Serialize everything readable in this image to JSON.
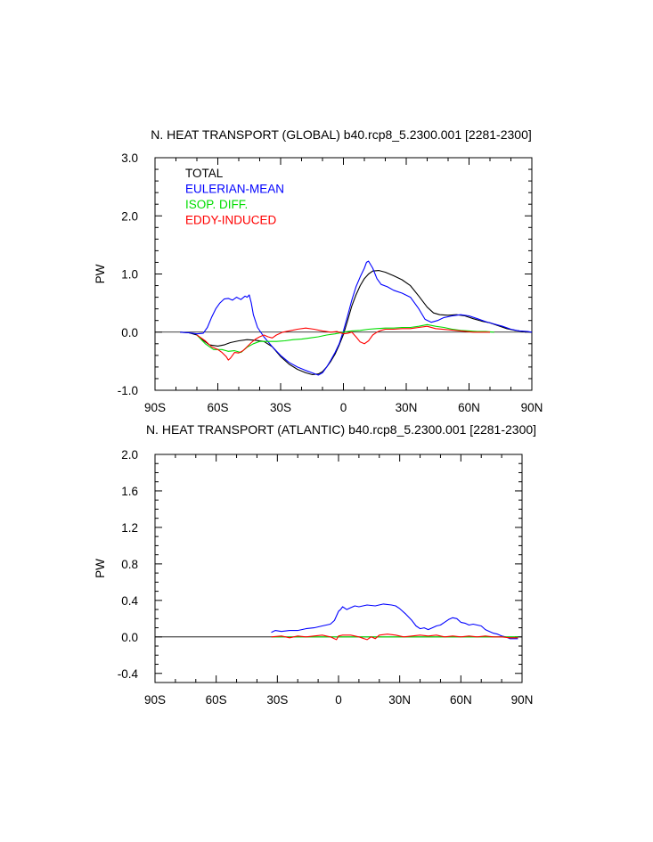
{
  "chart_data": [
    {
      "type": "line",
      "title": "N. HEAT TRANSPORT (GLOBAL) b40.rcp8_5.2300.001 [2281-2300]",
      "xlabel": "",
      "ylabel": "PW",
      "xlim": [
        -90,
        90
      ],
      "ylim": [
        -1.0,
        3.0
      ],
      "xticks": [
        -90,
        -60,
        -30,
        0,
        30,
        60,
        90
      ],
      "xtick_labels": [
        "90S",
        "60S",
        "30S",
        "0",
        "30N",
        "60N",
        "90N"
      ],
      "yticks": [
        -1.0,
        0.0,
        1.0,
        2.0,
        3.0
      ],
      "ytick_labels": [
        "-1.0",
        "0.0",
        "1.0",
        "2.0",
        "3.0"
      ],
      "zero_line": true,
      "legend": "top-left",
      "series": [
        {
          "name": "TOTAL",
          "color": "#000000",
          "x": [
            -78,
            -74,
            -70,
            -67,
            -64,
            -60,
            -57,
            -54,
            -50,
            -46,
            -42,
            -38,
            -34,
            -30,
            -26,
            -22,
            -18,
            -15,
            -12,
            -10,
            -8,
            -6,
            -4,
            -2,
            0,
            2,
            4,
            6,
            8,
            10,
            12,
            14,
            17,
            20,
            24,
            28,
            32,
            36,
            40,
            43,
            46,
            50,
            54,
            58,
            62,
            66,
            70,
            74,
            78,
            82,
            86,
            90
          ],
          "y": [
            0.0,
            -0.01,
            -0.05,
            -0.14,
            -0.22,
            -0.24,
            -0.22,
            -0.18,
            -0.15,
            -0.13,
            -0.14,
            -0.16,
            -0.25,
            -0.42,
            -0.55,
            -0.64,
            -0.7,
            -0.73,
            -0.72,
            -0.68,
            -0.6,
            -0.5,
            -0.38,
            -0.22,
            -0.04,
            0.2,
            0.45,
            0.64,
            0.8,
            0.92,
            1.0,
            1.05,
            1.06,
            1.03,
            0.97,
            0.9,
            0.8,
            0.62,
            0.43,
            0.33,
            0.3,
            0.29,
            0.3,
            0.28,
            0.23,
            0.19,
            0.16,
            0.11,
            0.06,
            0.03,
            0.01,
            0.0
          ]
        },
        {
          "name": "EULERIAN-MEAN",
          "color": "#0000ff",
          "x": [
            -78,
            -74,
            -70,
            -67,
            -65,
            -63,
            -61,
            -59,
            -57,
            -55,
            -53,
            -51,
            -49,
            -47,
            -46,
            -45,
            -44,
            -43,
            -41,
            -38,
            -34,
            -30,
            -26,
            -22,
            -18,
            -15,
            -12,
            -10,
            -8,
            -6,
            -4,
            -2,
            0,
            2,
            4,
            6,
            8,
            10,
            11,
            12,
            14,
            16,
            18,
            21,
            24,
            28,
            32,
            36,
            39,
            42,
            45,
            48,
            52,
            56,
            60,
            64,
            68,
            72,
            76,
            80,
            84,
            88,
            90
          ],
          "y": [
            0.0,
            -0.01,
            -0.03,
            -0.02,
            0.08,
            0.25,
            0.4,
            0.5,
            0.57,
            0.58,
            0.55,
            0.6,
            0.56,
            0.62,
            0.6,
            0.64,
            0.5,
            0.3,
            0.08,
            -0.08,
            -0.25,
            -0.4,
            -0.52,
            -0.6,
            -0.66,
            -0.7,
            -0.74,
            -0.7,
            -0.6,
            -0.48,
            -0.35,
            -0.2,
            0.02,
            0.28,
            0.55,
            0.78,
            0.95,
            1.1,
            1.2,
            1.22,
            1.1,
            0.92,
            0.82,
            0.78,
            0.72,
            0.67,
            0.6,
            0.4,
            0.22,
            0.17,
            0.2,
            0.25,
            0.28,
            0.3,
            0.28,
            0.23,
            0.18,
            0.14,
            0.1,
            0.05,
            0.02,
            0.01,
            0.0
          ]
        },
        {
          "name": "ISOP. DIFF.",
          "color": "#00dd00",
          "x": [
            -70,
            -66,
            -62,
            -58,
            -55,
            -52,
            -49,
            -46,
            -43,
            -40,
            -36,
            -32,
            -28,
            -24,
            -20,
            -16,
            -12,
            -8,
            -4,
            0,
            4,
            8,
            12,
            16,
            20,
            24,
            28,
            32,
            36,
            40,
            44,
            48,
            52,
            56,
            60,
            64,
            68,
            72
          ],
          "y": [
            -0.05,
            -0.2,
            -0.3,
            -0.3,
            -0.33,
            -0.32,
            -0.35,
            -0.26,
            -0.2,
            -0.16,
            -0.16,
            -0.16,
            -0.15,
            -0.13,
            -0.12,
            -0.1,
            -0.08,
            -0.05,
            -0.03,
            0.0,
            0.02,
            0.03,
            0.05,
            0.06,
            0.07,
            0.07,
            0.08,
            0.08,
            0.1,
            0.13,
            0.1,
            0.08,
            0.05,
            0.03,
            0.02,
            0.01,
            0.01,
            0.0
          ]
        },
        {
          "name": "EDDY-INDUCED",
          "color": "#ff0000",
          "x": [
            -70,
            -66,
            -63,
            -60,
            -58,
            -56,
            -55,
            -54,
            -53,
            -52,
            -50,
            -48,
            -46,
            -44,
            -42,
            -40,
            -38,
            -36,
            -34,
            -32,
            -29,
            -26,
            -22,
            -18,
            -14,
            -10,
            -6,
            -3,
            0,
            2,
            4,
            6,
            8,
            10,
            12,
            14,
            16,
            18,
            20,
            24,
            28,
            32,
            36,
            40,
            44,
            50,
            56,
            62,
            70
          ],
          "y": [
            -0.05,
            -0.15,
            -0.25,
            -0.3,
            -0.35,
            -0.42,
            -0.48,
            -0.45,
            -0.4,
            -0.35,
            -0.36,
            -0.32,
            -0.25,
            -0.18,
            -0.12,
            -0.08,
            -0.05,
            -0.08,
            -0.1,
            -0.05,
            0.0,
            0.02,
            0.05,
            0.07,
            0.05,
            0.02,
            0.0,
            0.01,
            -0.03,
            -0.02,
            0.0,
            -0.08,
            -0.17,
            -0.2,
            -0.15,
            -0.05,
            0.0,
            0.03,
            0.05,
            0.05,
            0.06,
            0.06,
            0.08,
            0.1,
            0.06,
            0.04,
            0.02,
            0.0,
            0.0
          ]
        }
      ]
    },
    {
      "type": "line",
      "title": "N. HEAT TRANSPORT (ATLANTIC) b40.rcp8_5.2300.001 [2281-2300]",
      "xlabel": "",
      "ylabel": "PW",
      "xlim": [
        -90,
        90
      ],
      "ylim": [
        -0.5,
        2.0
      ],
      "xticks": [
        -90,
        -60,
        -30,
        0,
        30,
        60,
        90
      ],
      "xtick_labels": [
        "90S",
        "60S",
        "30S",
        "0",
        "30N",
        "60N",
        "90N"
      ],
      "yticks": [
        -0.4,
        0.0,
        0.4,
        0.8,
        1.2,
        1.6,
        2.0
      ],
      "ytick_labels": [
        "-0.4",
        "0.0",
        "0.4",
        "0.8",
        "1.2",
        "1.6",
        "2.0"
      ],
      "zero_line": true,
      "legend": "none",
      "series": [
        {
          "name": "EULERIAN-MEAN",
          "color": "#0000ff",
          "x": [
            -33,
            -31,
            -28,
            -24,
            -20,
            -16,
            -12,
            -8,
            -4,
            -2,
            0,
            1,
            2,
            4,
            6,
            8,
            10,
            14,
            18,
            22,
            26,
            28,
            30,
            33,
            36,
            38,
            40,
            42,
            44,
            46,
            48,
            50,
            52,
            54,
            56,
            58,
            60,
            62,
            64,
            66,
            68,
            70,
            72,
            74,
            76,
            78,
            80,
            82,
            84,
            86,
            88
          ],
          "y": [
            0.05,
            0.07,
            0.06,
            0.07,
            0.07,
            0.09,
            0.1,
            0.12,
            0.14,
            0.18,
            0.28,
            0.3,
            0.33,
            0.3,
            0.32,
            0.34,
            0.33,
            0.35,
            0.34,
            0.36,
            0.35,
            0.34,
            0.31,
            0.25,
            0.18,
            0.12,
            0.09,
            0.1,
            0.08,
            0.1,
            0.12,
            0.13,
            0.16,
            0.19,
            0.21,
            0.2,
            0.16,
            0.15,
            0.13,
            0.14,
            0.13,
            0.12,
            0.08,
            0.06,
            0.04,
            0.03,
            0.01,
            0.0,
            -0.02,
            -0.02,
            -0.02
          ]
        },
        {
          "name": "ISOP. DIFF.",
          "color": "#00dd00",
          "x": [
            -33,
            -20,
            -10,
            0,
            10,
            20,
            30,
            40,
            50,
            60,
            70,
            80,
            88
          ],
          "y": [
            0.0,
            0.0,
            0.0,
            0.0,
            0.0,
            0.0,
            0.0,
            0.0,
            0.0,
            0.0,
            0.0,
            0.0,
            0.0
          ]
        },
        {
          "name": "EDDY-INDUCED",
          "color": "#ff0000",
          "x": [
            -33,
            -28,
            -24,
            -20,
            -16,
            -12,
            -8,
            -4,
            -1,
            0,
            2,
            6,
            10,
            14,
            16,
            18,
            20,
            24,
            28,
            32,
            36,
            40,
            44,
            48,
            52,
            56,
            60,
            64,
            68,
            72,
            76,
            80,
            84,
            88
          ],
          "y": [
            0.0,
            0.01,
            -0.01,
            0.01,
            0.0,
            0.01,
            0.02,
            0.0,
            -0.03,
            0.01,
            0.02,
            0.02,
            0.0,
            -0.03,
            0.0,
            -0.02,
            0.02,
            0.03,
            0.02,
            0.0,
            0.01,
            0.02,
            0.01,
            0.02,
            0.0,
            0.01,
            0.0,
            0.01,
            0.0,
            0.01,
            0.0,
            0.0,
            -0.01,
            -0.01
          ]
        }
      ]
    }
  ]
}
